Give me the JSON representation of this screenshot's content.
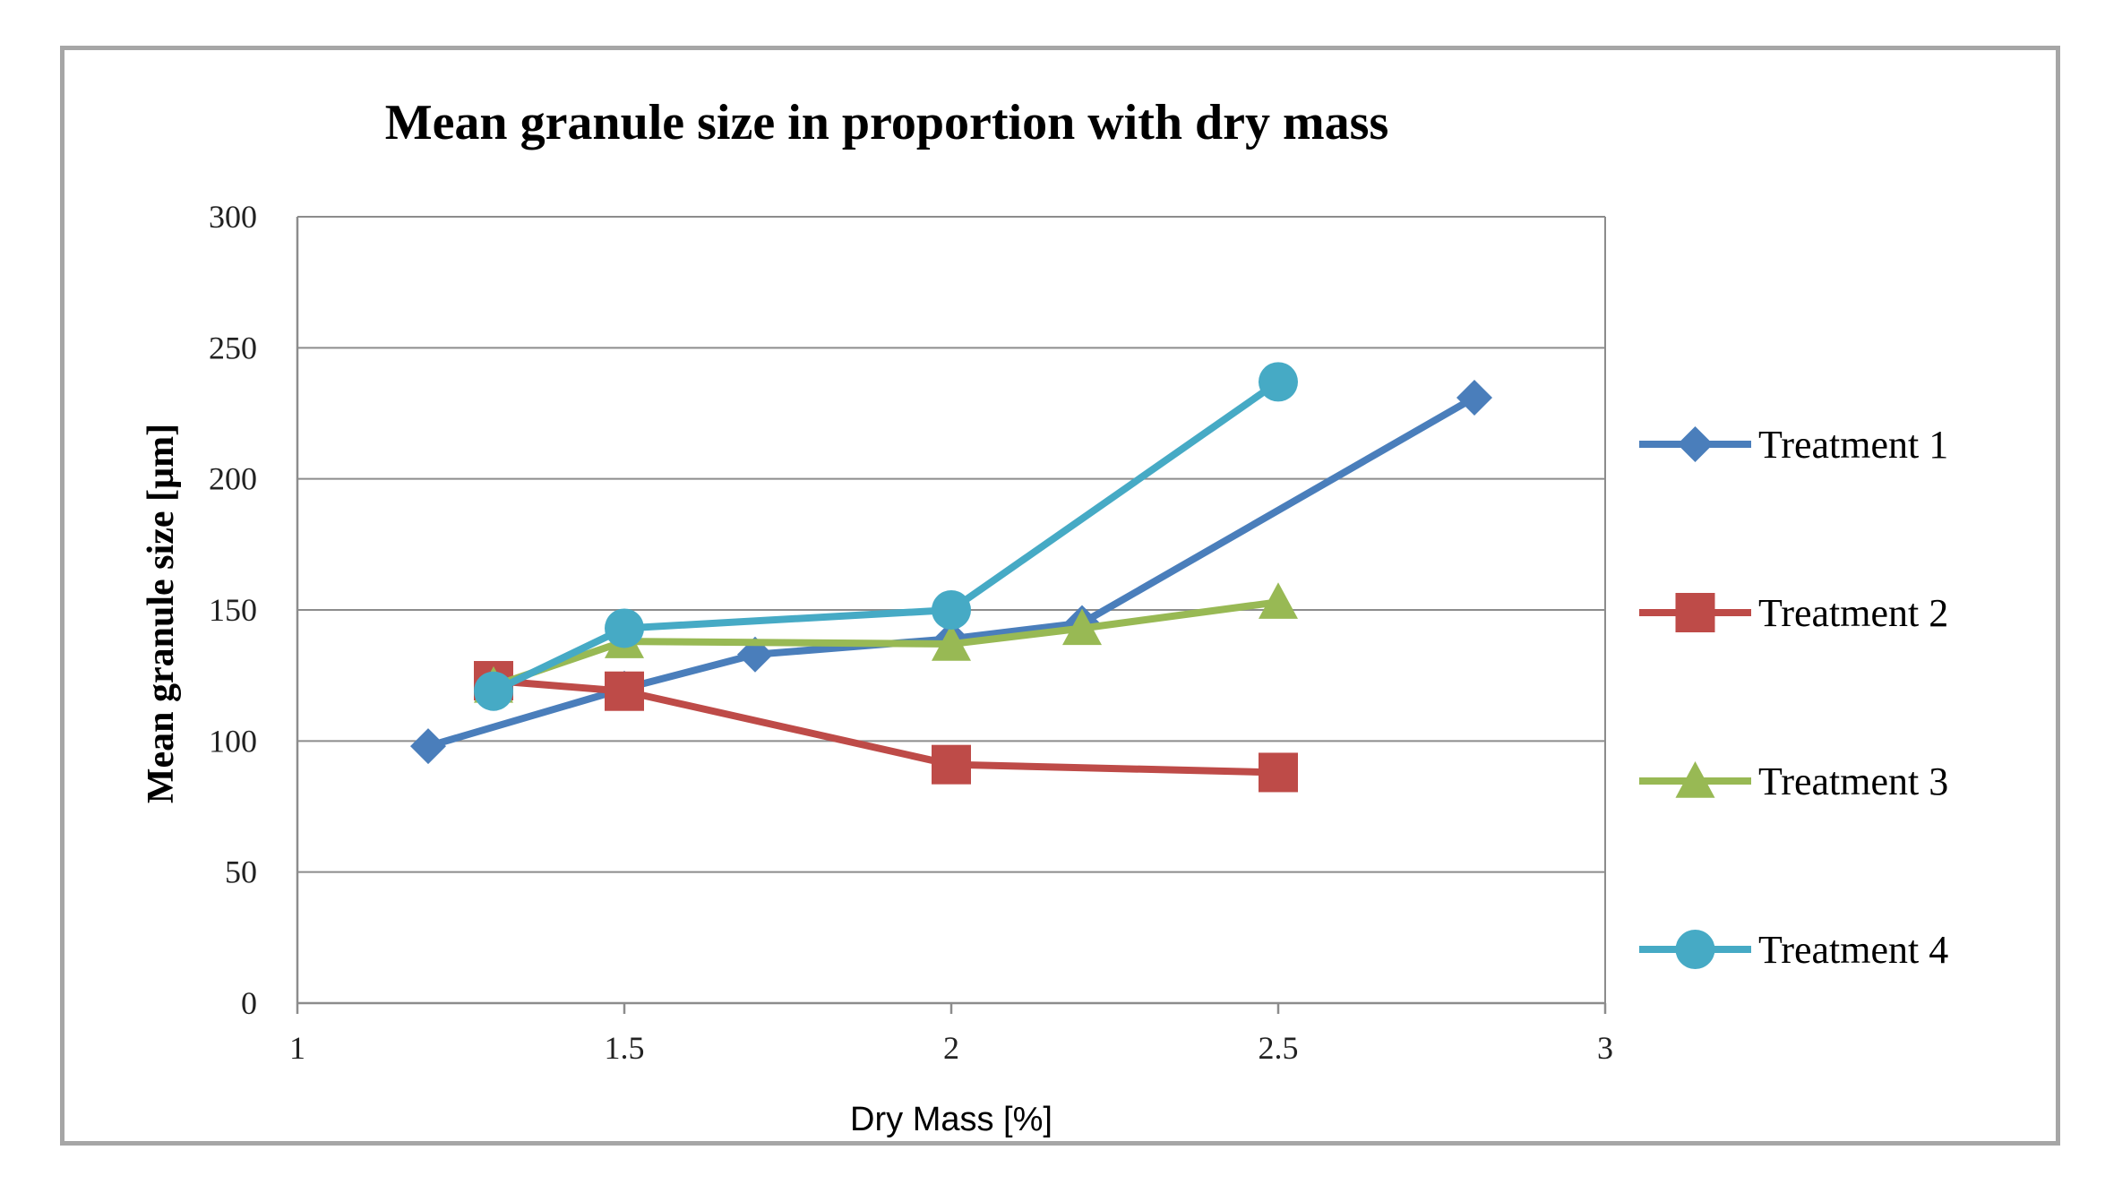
{
  "chart_data": {
    "type": "line",
    "title": "Mean granule size in proportion with dry mass",
    "xlabel": "Dry Mass [%]",
    "ylabel": "Mean granule size [µm]",
    "xlim": [
      1,
      3
    ],
    "ylim": [
      0,
      300
    ],
    "x_ticks": [
      "1",
      "1.5",
      "2",
      "2.5",
      "3"
    ],
    "y_ticks": [
      "0",
      "50",
      "100",
      "150",
      "200",
      "250",
      "300"
    ],
    "grid": "horizontal",
    "legend_position": "right",
    "series": [
      {
        "name": "Treatment 1",
        "color": "#4a7ebb",
        "marker": "diamond",
        "x": [
          1.2,
          1.5,
          1.7,
          2.0,
          2.2,
          2.8
        ],
        "values": [
          98,
          120,
          133,
          139,
          145,
          231
        ]
      },
      {
        "name": "Treatment 2",
        "color": "#be4b48",
        "marker": "square",
        "x": [
          1.3,
          1.5,
          2.0,
          2.5
        ],
        "values": [
          123,
          119,
          91,
          88
        ]
      },
      {
        "name": "Treatment 3",
        "color": "#98b954",
        "marker": "triangle",
        "x": [
          1.3,
          1.5,
          2.0,
          2.2,
          2.5
        ],
        "values": [
          121,
          138,
          137,
          143,
          153
        ]
      },
      {
        "name": "Treatment 4",
        "color": "#46aac5",
        "marker": "circle",
        "x": [
          1.3,
          1.5,
          2.0,
          2.5
        ],
        "values": [
          119,
          143,
          150,
          237
        ]
      }
    ]
  }
}
